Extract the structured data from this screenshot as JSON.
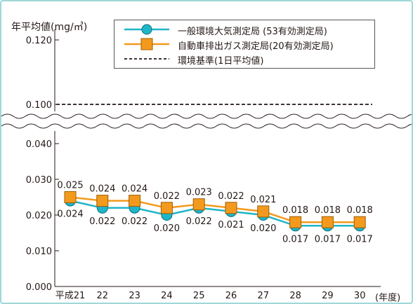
{
  "chart_data": {
    "type": "line",
    "ylabel": "年平均値(mg/㎥)",
    "xunit": "(年度)",
    "categories": [
      "平成21",
      "22",
      "23",
      "24",
      "25",
      "26",
      "27",
      "28",
      "29",
      "30"
    ],
    "y_ticks_lower": [
      "0.000",
      "0.010",
      "0.020",
      "0.030",
      "0.040"
    ],
    "y_ticks_upper": [
      "0.100",
      "0.120"
    ],
    "axis_break": {
      "from": 0.045,
      "to": 0.095
    },
    "ylim": [
      0,
      0.13
    ],
    "series": [
      {
        "name": "一般環境大気測定局  (53有効測定局)",
        "marker": "circle",
        "color": "#1fb5c9",
        "values": [
          0.024,
          0.022,
          0.022,
          0.02,
          0.022,
          0.021,
          0.02,
          0.017,
          0.017,
          0.017
        ],
        "labels": [
          "0.024",
          "0.022",
          "0.022",
          "0.020",
          "0.022",
          "0.021",
          "0.020",
          "0.017",
          "0.017",
          "0.017"
        ]
      },
      {
        "name": "自動車排出ガス測定局(20有効測定局)",
        "marker": "square",
        "color": "#f39a1e",
        "values": [
          0.025,
          0.024,
          0.024,
          0.022,
          0.023,
          0.022,
          0.021,
          0.018,
          0.018,
          0.018
        ],
        "labels": [
          "0.025",
          "0.024",
          "0.024",
          "0.022",
          "0.023",
          "0.022",
          "0.021",
          "0.018",
          "0.018",
          "0.018"
        ]
      }
    ],
    "reference": {
      "name": "環境基準(1日平均値)",
      "value": 0.1,
      "style": "dashed"
    },
    "legend_position": "top-right"
  }
}
